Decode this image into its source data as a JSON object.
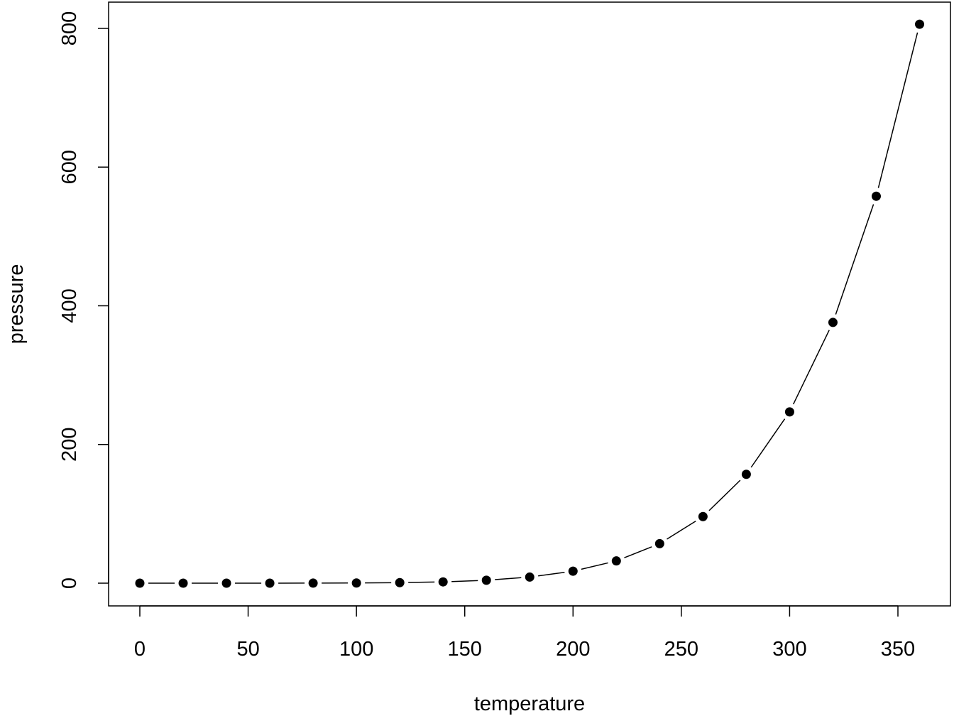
{
  "chart_data": {
    "type": "line",
    "title": "",
    "xlabel": "temperature",
    "ylabel": "pressure",
    "xlim": [
      0,
      360
    ],
    "ylim": [
      0,
      806
    ],
    "x_ticks": [
      "0",
      "50",
      "100",
      "150",
      "200",
      "250",
      "300",
      "350"
    ],
    "y_ticks": [
      "0",
      "200",
      "400",
      "600",
      "800"
    ],
    "grid": false,
    "markers": "filled-circle",
    "line_style": "solid lines between points (type b)",
    "colors": {
      "line": "#000000",
      "points": "#000000"
    },
    "x": [
      0,
      20,
      40,
      60,
      80,
      100,
      120,
      140,
      160,
      180,
      200,
      220,
      240,
      260,
      280,
      300,
      320,
      340,
      360
    ],
    "y": [
      0.0002,
      0.0012,
      0.006,
      0.03,
      0.09,
      0.27,
      0.75,
      1.85,
      4.2,
      8.8,
      17.3,
      32.1,
      57,
      96,
      157,
      247,
      376,
      558,
      806
    ]
  }
}
